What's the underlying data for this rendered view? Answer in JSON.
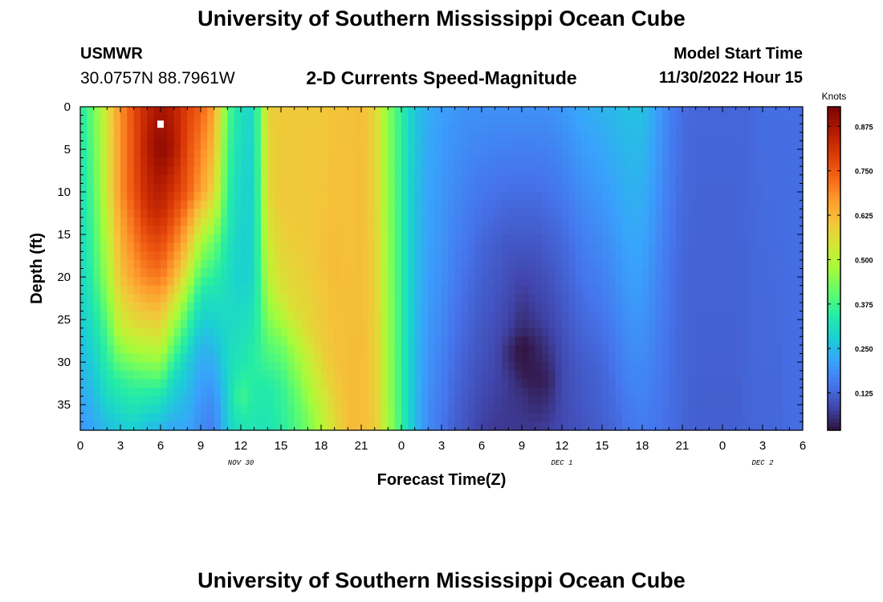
{
  "header": {
    "title": "University of Southern Mississippi Ocean Cube",
    "station": "USMWR",
    "coordinates": "30.0757N  88.7961W",
    "subtitle": "2-D Currents Speed-Magnitude",
    "model_start_label": "Model Start Time",
    "model_start_value": "11/30/2022 Hour 15"
  },
  "footer": {
    "title": "University of Southern Mississippi Ocean Cube"
  },
  "chart_data": {
    "type": "heatmap",
    "xlabel": "Forecast Time(Z)",
    "ylabel": "Depth (ft)",
    "x_range": [
      0,
      54
    ],
    "y_range": [
      0,
      38
    ],
    "y_inverted": true,
    "x_tick_values": [
      0,
      3,
      6,
      9,
      12,
      15,
      18,
      21,
      24,
      27,
      30,
      33,
      36,
      39,
      42,
      45,
      48,
      51,
      54
    ],
    "x_tick_labels": [
      "0",
      "3",
      "6",
      "9",
      "12",
      "15",
      "18",
      "21",
      "0",
      "3",
      "6",
      "9",
      "12",
      "15",
      "18",
      "21",
      "0",
      "3",
      "6"
    ],
    "date_labels": [
      {
        "text": "NOV 30",
        "x": 12
      },
      {
        "text": "DEC 1",
        "x": 36
      },
      {
        "text": "DEC 2",
        "x": 51
      }
    ],
    "y_tick_values": [
      0,
      5,
      10,
      15,
      20,
      25,
      30,
      35
    ],
    "y_tick_labels": [
      "0",
      "5",
      "10",
      "15",
      "20",
      "25",
      "30",
      "35"
    ],
    "colorbar": {
      "label": "Knots",
      "range": [
        0.02,
        0.93
      ],
      "tick_values": [
        0.125,
        0.25,
        0.375,
        0.5,
        0.625,
        0.75,
        0.875
      ],
      "tick_labels": [
        "0.125",
        "0.250",
        "0.375",
        "0.500",
        "0.625",
        "0.750",
        "0.875"
      ],
      "colormap": [
        "#30123b",
        "#4145ab",
        "#4675ed",
        "#39a2fc",
        "#1bcfd4",
        "#24eca6",
        "#61fc6c",
        "#a4fc3b",
        "#d1e834",
        "#f3c63a",
        "#fe9b2d",
        "#f36315",
        "#d93806",
        "#b11901",
        "#7a0402"
      ]
    },
    "columns": [
      {
        "x": 0,
        "profile": [
          [
            0,
            0.34
          ],
          [
            20,
            0.3
          ],
          [
            30,
            0.25
          ],
          [
            38,
            0.2
          ]
        ]
      },
      {
        "x": 1,
        "profile": [
          [
            0,
            0.42
          ],
          [
            20,
            0.36
          ],
          [
            30,
            0.28
          ],
          [
            38,
            0.22
          ]
        ]
      },
      {
        "x": 2,
        "profile": [
          [
            0,
            0.55
          ],
          [
            10,
            0.54
          ],
          [
            20,
            0.47
          ],
          [
            27,
            0.38
          ],
          [
            33,
            0.32
          ],
          [
            38,
            0.25
          ]
        ]
      },
      {
        "x": 3,
        "profile": [
          [
            0,
            0.68
          ],
          [
            10,
            0.68
          ],
          [
            20,
            0.61
          ],
          [
            26,
            0.52
          ],
          [
            32,
            0.36
          ],
          [
            38,
            0.27
          ]
        ]
      },
      {
        "x": 4,
        "profile": [
          [
            0,
            0.77
          ],
          [
            10,
            0.76
          ],
          [
            20,
            0.66
          ],
          [
            26,
            0.55
          ],
          [
            32,
            0.38
          ],
          [
            38,
            0.28
          ]
        ]
      },
      {
        "x": 5,
        "profile": [
          [
            0,
            0.84
          ],
          [
            5,
            0.86
          ],
          [
            12,
            0.82
          ],
          [
            20,
            0.7
          ],
          [
            27,
            0.54
          ],
          [
            33,
            0.36
          ],
          [
            38,
            0.25
          ]
        ]
      },
      {
        "x": 6,
        "profile": [
          [
            0,
            0.88
          ],
          [
            5,
            0.91
          ],
          [
            12,
            0.84
          ],
          [
            20,
            0.71
          ],
          [
            28,
            0.52
          ],
          [
            34,
            0.33
          ],
          [
            38,
            0.24
          ]
        ]
      },
      {
        "x": 7,
        "profile": [
          [
            0,
            0.85
          ],
          [
            5,
            0.87
          ],
          [
            12,
            0.78
          ],
          [
            20,
            0.64
          ],
          [
            26,
            0.46
          ],
          [
            32,
            0.3
          ],
          [
            38,
            0.22
          ]
        ]
      },
      {
        "x": 8,
        "profile": [
          [
            0,
            0.79
          ],
          [
            10,
            0.75
          ],
          [
            18,
            0.58
          ],
          [
            24,
            0.4
          ],
          [
            30,
            0.28
          ],
          [
            38,
            0.22
          ]
        ]
      },
      {
        "x": 9,
        "profile": [
          [
            0,
            0.74
          ],
          [
            10,
            0.66
          ],
          [
            16,
            0.48
          ],
          [
            22,
            0.33
          ],
          [
            28,
            0.24
          ],
          [
            34,
            0.2
          ],
          [
            38,
            0.18
          ]
        ]
      },
      {
        "x": 10,
        "profile": [
          [
            0,
            0.66
          ],
          [
            10,
            0.58
          ],
          [
            16,
            0.42
          ],
          [
            22,
            0.32
          ],
          [
            30,
            0.23
          ],
          [
            35,
            0.18
          ],
          [
            38,
            0.16
          ]
        ]
      },
      {
        "x": 11,
        "profile": [
          [
            0,
            0.4
          ],
          [
            10,
            0.36
          ],
          [
            20,
            0.31
          ],
          [
            30,
            0.3
          ],
          [
            38,
            0.28
          ]
        ]
      },
      {
        "x": 12,
        "profile": [
          [
            0,
            0.31
          ],
          [
            10,
            0.29
          ],
          [
            20,
            0.28
          ],
          [
            30,
            0.33
          ],
          [
            34,
            0.38
          ],
          [
            38,
            0.32
          ]
        ]
      },
      {
        "x": 13,
        "profile": [
          [
            0,
            0.3
          ],
          [
            10,
            0.29
          ],
          [
            20,
            0.3
          ],
          [
            30,
            0.35
          ],
          [
            38,
            0.33
          ]
        ]
      },
      {
        "x": 14,
        "profile": [
          [
            0,
            0.58
          ],
          [
            10,
            0.57
          ],
          [
            20,
            0.5
          ],
          [
            28,
            0.4
          ],
          [
            33,
            0.34
          ],
          [
            38,
            0.32
          ]
        ]
      },
      {
        "x": 15,
        "profile": [
          [
            0,
            0.6
          ],
          [
            12,
            0.6
          ],
          [
            22,
            0.55
          ],
          [
            28,
            0.42
          ],
          [
            33,
            0.36
          ],
          [
            38,
            0.35
          ]
        ]
      },
      {
        "x": 16,
        "profile": [
          [
            0,
            0.6
          ],
          [
            14,
            0.6
          ],
          [
            24,
            0.56
          ],
          [
            29,
            0.46
          ],
          [
            34,
            0.4
          ],
          [
            38,
            0.38
          ]
        ]
      },
      {
        "x": 17,
        "profile": [
          [
            0,
            0.6
          ],
          [
            16,
            0.6
          ],
          [
            26,
            0.57
          ],
          [
            31,
            0.5
          ],
          [
            36,
            0.44
          ],
          [
            38,
            0.43
          ]
        ]
      },
      {
        "x": 18,
        "profile": [
          [
            0,
            0.6
          ],
          [
            18,
            0.61
          ],
          [
            28,
            0.59
          ],
          [
            33,
            0.54
          ],
          [
            38,
            0.49
          ]
        ]
      },
      {
        "x": 19,
        "profile": [
          [
            0,
            0.61
          ],
          [
            20,
            0.62
          ],
          [
            30,
            0.61
          ],
          [
            35,
            0.58
          ],
          [
            38,
            0.56
          ]
        ]
      },
      {
        "x": 20,
        "profile": [
          [
            0,
            0.61
          ],
          [
            38,
            0.62
          ]
        ]
      },
      {
        "x": 21,
        "profile": [
          [
            0,
            0.62
          ],
          [
            38,
            0.62
          ]
        ]
      },
      {
        "x": 22,
        "profile": [
          [
            0,
            0.58
          ],
          [
            38,
            0.6
          ]
        ]
      },
      {
        "x": 23,
        "profile": [
          [
            0,
            0.45
          ],
          [
            38,
            0.48
          ]
        ]
      },
      {
        "x": 24,
        "profile": [
          [
            0,
            0.35
          ],
          [
            38,
            0.36
          ]
        ]
      },
      {
        "x": 25,
        "profile": [
          [
            0,
            0.27
          ],
          [
            38,
            0.25
          ]
        ]
      },
      {
        "x": 26,
        "profile": [
          [
            0,
            0.23
          ],
          [
            20,
            0.21
          ],
          [
            38,
            0.18
          ]
        ]
      },
      {
        "x": 27,
        "profile": [
          [
            0,
            0.21
          ],
          [
            20,
            0.19
          ],
          [
            38,
            0.15
          ]
        ]
      },
      {
        "x": 28,
        "profile": [
          [
            0,
            0.2
          ],
          [
            20,
            0.16
          ],
          [
            38,
            0.12
          ]
        ]
      },
      {
        "x": 29,
        "profile": [
          [
            0,
            0.19
          ],
          [
            20,
            0.14
          ],
          [
            38,
            0.1
          ]
        ]
      },
      {
        "x": 30,
        "profile": [
          [
            0,
            0.19
          ],
          [
            16,
            0.13
          ],
          [
            30,
            0.1
          ],
          [
            38,
            0.08
          ]
        ]
      },
      {
        "x": 31,
        "profile": [
          [
            0,
            0.19
          ],
          [
            16,
            0.12
          ],
          [
            30,
            0.09
          ],
          [
            38,
            0.07
          ]
        ]
      },
      {
        "x": 32,
        "profile": [
          [
            0,
            0.19
          ],
          [
            16,
            0.11
          ],
          [
            26,
            0.08
          ],
          [
            29,
            0.05
          ],
          [
            32,
            0.07
          ],
          [
            38,
            0.07
          ]
        ]
      },
      {
        "x": 33,
        "profile": [
          [
            0,
            0.19
          ],
          [
            16,
            0.11
          ],
          [
            26,
            0.05
          ],
          [
            28,
            0.02
          ],
          [
            31,
            0.03
          ],
          [
            34,
            0.06
          ],
          [
            38,
            0.07
          ]
        ]
      },
      {
        "x": 34,
        "profile": [
          [
            0,
            0.19
          ],
          [
            16,
            0.11
          ],
          [
            25,
            0.07
          ],
          [
            28,
            0.04
          ],
          [
            32,
            0.03
          ],
          [
            35,
            0.05
          ],
          [
            38,
            0.07
          ]
        ]
      },
      {
        "x": 35,
        "profile": [
          [
            0,
            0.19
          ],
          [
            16,
            0.12
          ],
          [
            26,
            0.08
          ],
          [
            32,
            0.04
          ],
          [
            35,
            0.06
          ],
          [
            38,
            0.08
          ]
        ]
      },
      {
        "x": 36,
        "profile": [
          [
            0,
            0.2
          ],
          [
            16,
            0.13
          ],
          [
            30,
            0.09
          ],
          [
            38,
            0.09
          ]
        ]
      },
      {
        "x": 37,
        "profile": [
          [
            0,
            0.22
          ],
          [
            16,
            0.15
          ],
          [
            30,
            0.11
          ],
          [
            38,
            0.1
          ]
        ]
      },
      {
        "x": 38,
        "profile": [
          [
            0,
            0.23
          ],
          [
            16,
            0.17
          ],
          [
            30,
            0.12
          ],
          [
            38,
            0.11
          ]
        ]
      },
      {
        "x": 39,
        "profile": [
          [
            0,
            0.24
          ],
          [
            16,
            0.18
          ],
          [
            30,
            0.13
          ],
          [
            38,
            0.12
          ]
        ]
      },
      {
        "x": 40,
        "profile": [
          [
            0,
            0.25
          ],
          [
            16,
            0.2
          ],
          [
            30,
            0.15
          ],
          [
            38,
            0.13
          ]
        ]
      },
      {
        "x": 41,
        "profile": [
          [
            0,
            0.26
          ],
          [
            20,
            0.21
          ],
          [
            38,
            0.15
          ]
        ]
      },
      {
        "x": 42,
        "profile": [
          [
            0,
            0.26
          ],
          [
            20,
            0.21
          ],
          [
            38,
            0.16
          ]
        ]
      },
      {
        "x": 43,
        "profile": [
          [
            0,
            0.22
          ],
          [
            20,
            0.18
          ],
          [
            38,
            0.15
          ]
        ]
      },
      {
        "x": 44,
        "profile": [
          [
            0,
            0.17
          ],
          [
            20,
            0.15
          ],
          [
            38,
            0.14
          ]
        ]
      },
      {
        "x": 45,
        "profile": [
          [
            0,
            0.14
          ],
          [
            20,
            0.13
          ],
          [
            38,
            0.13
          ]
        ]
      },
      {
        "x": 46,
        "profile": [
          [
            0,
            0.13
          ],
          [
            38,
            0.12
          ]
        ]
      },
      {
        "x": 47,
        "profile": [
          [
            0,
            0.13
          ],
          [
            38,
            0.12
          ]
        ]
      },
      {
        "x": 48,
        "profile": [
          [
            0,
            0.13
          ],
          [
            38,
            0.12
          ]
        ]
      },
      {
        "x": 49,
        "profile": [
          [
            0,
            0.13
          ],
          [
            38,
            0.12
          ]
        ]
      },
      {
        "x": 50,
        "profile": [
          [
            0,
            0.13
          ],
          [
            38,
            0.13
          ]
        ]
      },
      {
        "x": 51,
        "profile": [
          [
            0,
            0.14
          ],
          [
            38,
            0.13
          ]
        ]
      },
      {
        "x": 52,
        "profile": [
          [
            0,
            0.14
          ],
          [
            38,
            0.13
          ]
        ]
      },
      {
        "x": 53,
        "profile": [
          [
            0,
            0.14
          ],
          [
            38,
            0.14
          ]
        ]
      },
      {
        "x": 54,
        "profile": [
          [
            0,
            0.14
          ],
          [
            38,
            0.14
          ]
        ]
      }
    ],
    "marker": {
      "x": 6,
      "y": 2
    }
  }
}
